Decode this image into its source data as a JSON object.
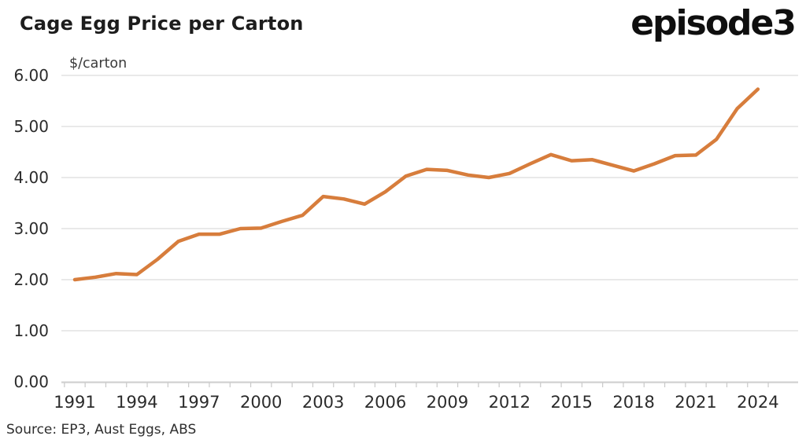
{
  "header": {
    "title": "Cage Egg Price per Carton",
    "logo_text": "episode3"
  },
  "source_note": "Source: EP3, Aust Eggs, ABS",
  "chart_data": {
    "type": "line",
    "title": "Cage Egg Price per Carton",
    "unit_label": "$/carton",
    "series": [
      {
        "name": "Cage egg price per carton ($)",
        "x": [
          1991,
          1992,
          1993,
          1994,
          1995,
          1996,
          1997,
          1998,
          1999,
          2000,
          2001,
          2002,
          2003,
          2004,
          2005,
          2006,
          2007,
          2008,
          2009,
          2010,
          2011,
          2012,
          2013,
          2014,
          2015,
          2016,
          2017,
          2018,
          2019,
          2020,
          2021,
          2022,
          2023,
          2024
        ],
        "values": [
          2.0,
          2.05,
          2.12,
          2.1,
          2.4,
          2.75,
          2.89,
          2.89,
          3.0,
          3.01,
          3.14,
          3.26,
          3.63,
          3.58,
          3.48,
          3.72,
          4.03,
          4.16,
          4.14,
          4.05,
          4.0,
          4.08,
          4.27,
          4.45,
          4.33,
          4.35,
          4.24,
          4.13,
          4.27,
          4.43,
          4.44,
          4.75,
          5.35,
          5.73
        ]
      }
    ],
    "xlim": [
      1991,
      2024
    ],
    "ylim": [
      0,
      6
    ],
    "yticks": [
      0,
      1,
      2,
      3,
      4,
      5,
      6
    ],
    "ytick_labels": [
      "0.00",
      "1.00",
      "2.00",
      "3.00",
      "4.00",
      "5.00",
      "6.00"
    ],
    "xticks": [
      1991,
      1994,
      1997,
      2000,
      2003,
      2006,
      2009,
      2012,
      2015,
      2018,
      2021,
      2024
    ],
    "grid": "horizontal",
    "legend": "none",
    "style": {
      "line_color": "#D77D3C",
      "line_width": 4.5,
      "grid_color": "#DCDCDC",
      "axis_color": "#C9C9C9",
      "tick_label_color": "#2b2b2b",
      "unit_label_color": "#3a3a3a"
    }
  }
}
